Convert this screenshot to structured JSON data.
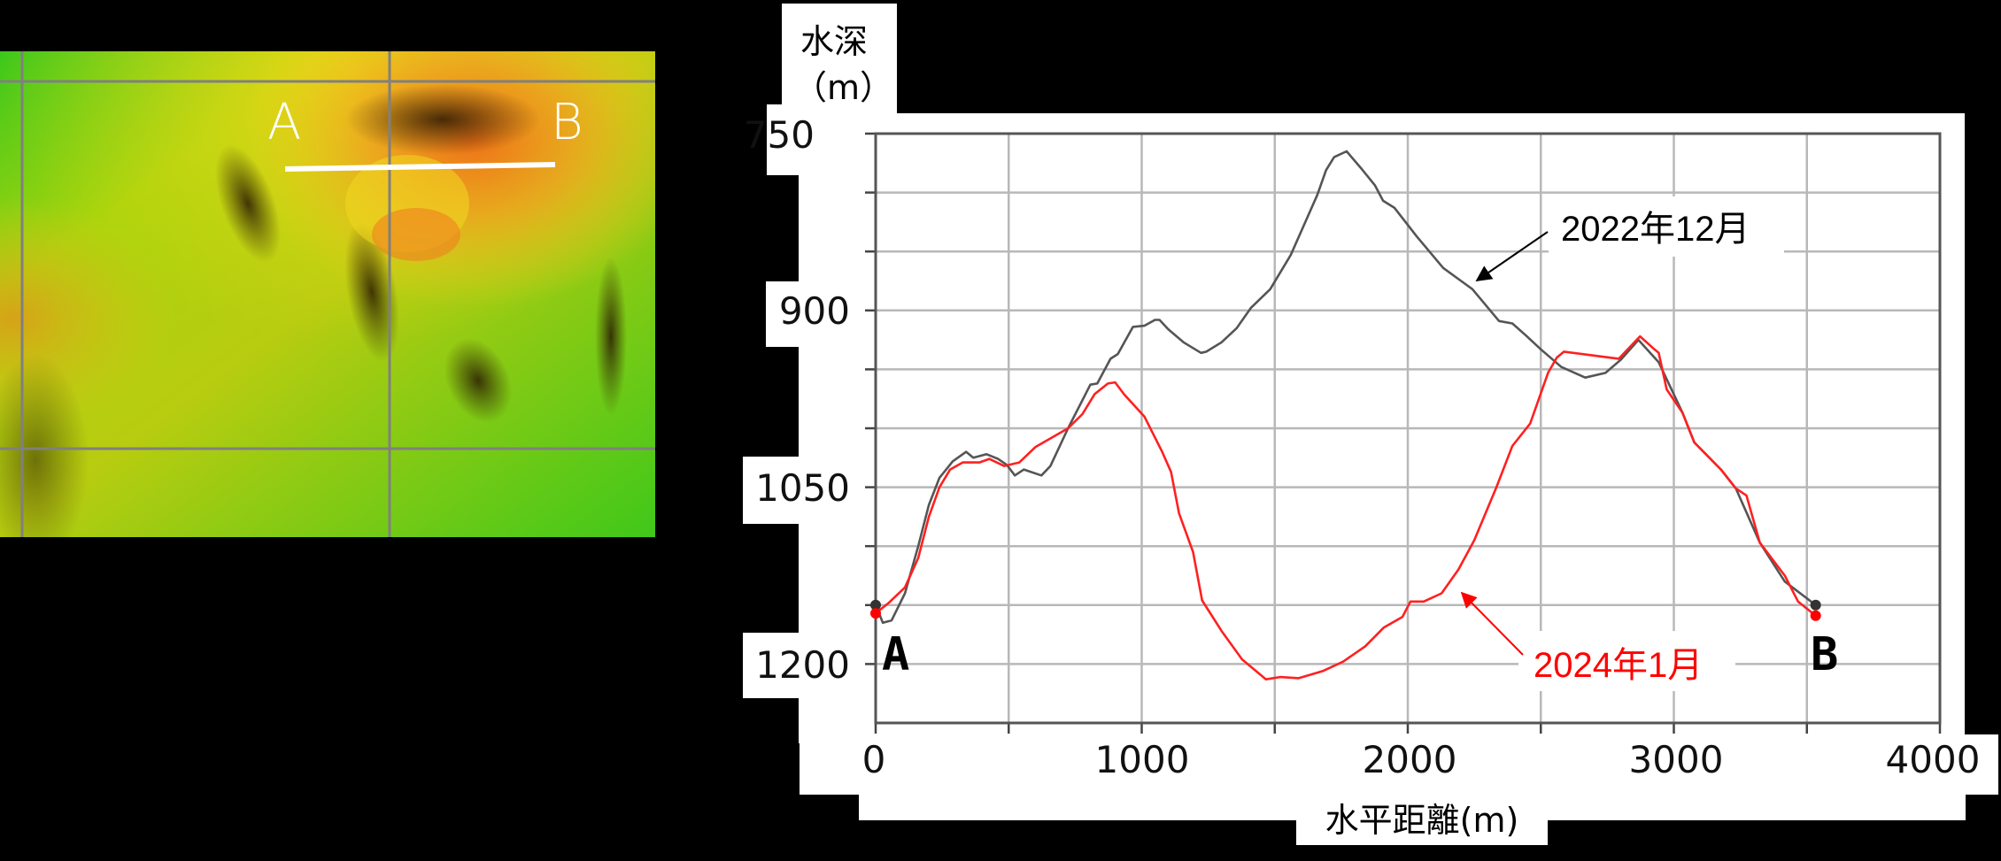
{
  "map": {
    "label_a": "A",
    "label_b": "B",
    "colors": {
      "low": "#33c81a",
      "mid": "#9bd80a",
      "high": "#f0e000",
      "peak": "#f07a1a",
      "shadow": "#3a2a05"
    },
    "grid_color": "#808080",
    "section_line_color": "#ffffff"
  },
  "chart": {
    "y_axis_title_line1": "水深",
    "y_axis_title_line2": "（m）",
    "x_axis_title": "水平距離(m)",
    "y_tick_labels": [
      "750",
      "900",
      "1050",
      "1200"
    ],
    "x_tick_labels": [
      "0",
      "1000",
      "2000",
      "3000",
      "4000"
    ],
    "point_a_label": "A",
    "point_b_label": "B",
    "legend_2022": "2022年12月",
    "legend_2024": "2024年1月"
  },
  "chart_data": {
    "type": "line",
    "title": "",
    "xlabel": "水平距離(m)",
    "ylabel": "水深（m）",
    "xlim": [
      0,
      4000
    ],
    "ylim": [
      750,
      1250
    ],
    "y_inverted": true,
    "x_ticks": [
      0,
      1000,
      2000,
      3000,
      4000
    ],
    "x_minor_gridlines": [
      500,
      1500,
      2500,
      3500
    ],
    "y_tick_labels_shown": [
      750,
      900,
      1050,
      1200
    ],
    "y_gridlines_every": 50,
    "grid": true,
    "annotations": [
      {
        "text": "A",
        "x": 0,
        "position": "below-start"
      },
      {
        "text": "B",
        "x": 3540,
        "position": "below-end"
      },
      {
        "text": "2022年12月",
        "color": "#000000",
        "arrow_to": [
          2240,
          882
        ]
      },
      {
        "text": "2024年1月",
        "color": "#ff0000",
        "arrow_to": [
          2210,
          1130
        ]
      }
    ],
    "series": [
      {
        "name": "2022年12月",
        "color": "#555555",
        "points": [
          [
            0,
            1150
          ],
          [
            27,
            1165
          ],
          [
            60,
            1163
          ],
          [
            110,
            1140
          ],
          [
            160,
            1100
          ],
          [
            200,
            1065
          ],
          [
            240,
            1042
          ],
          [
            290,
            1028
          ],
          [
            340,
            1020
          ],
          [
            367,
            1025
          ],
          [
            417,
            1022
          ],
          [
            460,
            1026
          ],
          [
            493,
            1031
          ],
          [
            523,
            1040
          ],
          [
            557,
            1035
          ],
          [
            623,
            1040
          ],
          [
            657,
            1032
          ],
          [
            723,
            1000
          ],
          [
            807,
            963
          ],
          [
            833,
            962
          ],
          [
            883,
            941
          ],
          [
            910,
            937
          ],
          [
            967,
            914
          ],
          [
            1010,
            913
          ],
          [
            1050,
            908
          ],
          [
            1067,
            908
          ],
          [
            1100,
            916
          ],
          [
            1157,
            927
          ],
          [
            1223,
            936
          ],
          [
            1243,
            935
          ],
          [
            1300,
            927
          ],
          [
            1357,
            915
          ],
          [
            1410,
            898
          ],
          [
            1483,
            882
          ],
          [
            1560,
            853
          ],
          [
            1660,
            802
          ],
          [
            1693,
            781
          ],
          [
            1723,
            770
          ],
          [
            1770,
            765
          ],
          [
            1823,
            779
          ],
          [
            1877,
            794
          ],
          [
            1907,
            807
          ],
          [
            1950,
            813
          ],
          [
            2033,
            837
          ],
          [
            2133,
            864
          ],
          [
            2243,
            882
          ],
          [
            2343,
            909
          ],
          [
            2393,
            911
          ],
          [
            2443,
            921
          ],
          [
            2500,
            933
          ],
          [
            2577,
            948
          ],
          [
            2667,
            957
          ],
          [
            2743,
            953
          ],
          [
            2800,
            942
          ],
          [
            2867,
            925
          ],
          [
            2943,
            944
          ],
          [
            3033,
            987
          ],
          [
            3077,
            1012
          ],
          [
            3177,
            1035
          ],
          [
            3233,
            1051
          ],
          [
            3323,
            1097
          ],
          [
            3417,
            1130
          ],
          [
            3533,
            1150
          ]
        ]
      },
      {
        "name": "2024年1月",
        "color": "#ff2020",
        "points": [
          [
            0,
            1157
          ],
          [
            50,
            1148
          ],
          [
            110,
            1135
          ],
          [
            160,
            1110
          ],
          [
            200,
            1075
          ],
          [
            240,
            1050
          ],
          [
            280,
            1035
          ],
          [
            327,
            1029
          ],
          [
            390,
            1029
          ],
          [
            427,
            1026
          ],
          [
            483,
            1032
          ],
          [
            540,
            1029
          ],
          [
            600,
            1016
          ],
          [
            677,
            1006
          ],
          [
            723,
            1000
          ],
          [
            777,
            988
          ],
          [
            823,
            971
          ],
          [
            873,
            962
          ],
          [
            900,
            961
          ],
          [
            933,
            971
          ],
          [
            1010,
            990
          ],
          [
            1077,
            1020
          ],
          [
            1110,
            1037
          ],
          [
            1140,
            1072
          ],
          [
            1193,
            1105
          ],
          [
            1227,
            1146
          ],
          [
            1300,
            1172
          ],
          [
            1377,
            1196
          ],
          [
            1467,
            1213
          ],
          [
            1520,
            1211
          ],
          [
            1590,
            1212
          ],
          [
            1680,
            1206
          ],
          [
            1757,
            1198
          ],
          [
            1840,
            1185
          ],
          [
            1910,
            1169
          ],
          [
            1980,
            1160
          ],
          [
            2010,
            1147
          ],
          [
            2060,
            1147
          ],
          [
            2127,
            1140
          ],
          [
            2190,
            1120
          ],
          [
            2250,
            1095
          ],
          [
            2333,
            1050
          ],
          [
            2393,
            1015
          ],
          [
            2460,
            996
          ],
          [
            2527,
            953
          ],
          [
            2560,
            940
          ],
          [
            2587,
            935
          ],
          [
            2690,
            938
          ],
          [
            2793,
            941
          ],
          [
            2873,
            922
          ],
          [
            2927,
            933
          ],
          [
            2943,
            936
          ],
          [
            2973,
            967
          ],
          [
            3033,
            987
          ],
          [
            3077,
            1012
          ],
          [
            3177,
            1035
          ],
          [
            3233,
            1051
          ],
          [
            3273,
            1057
          ],
          [
            3323,
            1097
          ],
          [
            3417,
            1125
          ],
          [
            3467,
            1147
          ],
          [
            3533,
            1159
          ]
        ]
      }
    ]
  }
}
